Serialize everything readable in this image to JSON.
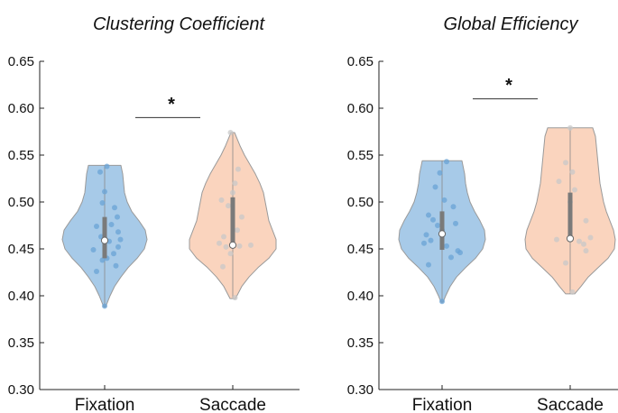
{
  "chart_data": [
    {
      "type": "violin",
      "title": "Clustering Coefficient",
      "categories": [
        "Fixation",
        "Saccade"
      ],
      "ylim": [
        0.3,
        0.65
      ],
      "yticks": [
        "0.30",
        "0.35",
        "0.40",
        "0.45",
        "0.50",
        "0.55",
        "0.60",
        "0.65"
      ],
      "significance": {
        "label": "*",
        "between": [
          "Fixation",
          "Saccade"
        ],
        "y": 0.59
      },
      "groups": [
        {
          "name": "Fixation",
          "color": "#8ab8e0",
          "dot_color": "#6aa3d6",
          "min": 0.388,
          "max": 0.539,
          "median": 0.459,
          "q1": 0.44,
          "q3": 0.484,
          "density": [
            [
              0.388,
              0.01
            ],
            [
              0.4,
              0.06
            ],
            [
              0.41,
              0.11
            ],
            [
              0.42,
              0.18
            ],
            [
              0.43,
              0.26
            ],
            [
              0.44,
              0.36
            ],
            [
              0.45,
              0.44
            ],
            [
              0.46,
              0.47
            ],
            [
              0.47,
              0.45
            ],
            [
              0.48,
              0.38
            ],
            [
              0.49,
              0.3
            ],
            [
              0.5,
              0.25
            ],
            [
              0.51,
              0.22
            ],
            [
              0.52,
              0.21
            ],
            [
              0.53,
              0.2
            ],
            [
              0.539,
              0.18
            ]
          ],
          "points": [
            [
              -0.1,
              0.532
            ],
            [
              0.05,
              0.538
            ],
            [
              0.0,
              0.511
            ],
            [
              -0.05,
              0.499
            ],
            [
              0.22,
              0.494
            ],
            [
              0.28,
              0.484
            ],
            [
              -0.18,
              0.474
            ],
            [
              0.15,
              0.476
            ],
            [
              0.3,
              0.468
            ],
            [
              -0.08,
              0.463
            ],
            [
              0.1,
              0.458
            ],
            [
              0.35,
              0.46
            ],
            [
              -0.25,
              0.449
            ],
            [
              0.3,
              0.452
            ],
            [
              0.2,
              0.445
            ],
            [
              0.05,
              0.44
            ],
            [
              -0.05,
              0.438
            ],
            [
              0.25,
              0.432
            ],
            [
              -0.18,
              0.426
            ],
            [
              0.0,
              0.389
            ]
          ]
        },
        {
          "name": "Saccade",
          "color": "#f8c5a8",
          "dot_color": "#c8c8c8",
          "min": 0.397,
          "max": 0.574,
          "median": 0.454,
          "q1": 0.452,
          "q3": 0.505,
          "density": [
            [
              0.397,
              0.03
            ],
            [
              0.41,
              0.1
            ],
            [
              0.42,
              0.18
            ],
            [
              0.43,
              0.28
            ],
            [
              0.44,
              0.4
            ],
            [
              0.45,
              0.48
            ],
            [
              0.46,
              0.48
            ],
            [
              0.47,
              0.44
            ],
            [
              0.48,
              0.4
            ],
            [
              0.49,
              0.38
            ],
            [
              0.5,
              0.36
            ],
            [
              0.51,
              0.34
            ],
            [
              0.52,
              0.3
            ],
            [
              0.53,
              0.25
            ],
            [
              0.54,
              0.19
            ],
            [
              0.55,
              0.13
            ],
            [
              0.56,
              0.08
            ],
            [
              0.574,
              0.02
            ]
          ],
          "points": [
            [
              -0.05,
              0.574
            ],
            [
              0.12,
              0.535
            ],
            [
              0.05,
              0.52
            ],
            [
              0.0,
              0.51
            ],
            [
              -0.25,
              0.502
            ],
            [
              -0.1,
              0.496
            ],
            [
              0.2,
              0.484
            ],
            [
              -0.2,
              0.463
            ],
            [
              0.1,
              0.47
            ],
            [
              -0.3,
              0.456
            ],
            [
              -0.15,
              0.452
            ],
            [
              0.15,
              0.453
            ],
            [
              0.4,
              0.454
            ],
            [
              -0.05,
              0.445
            ],
            [
              -0.22,
              0.431
            ],
            [
              0.05,
              0.398
            ]
          ]
        }
      ]
    },
    {
      "type": "violin",
      "title": "Global Efficiency",
      "categories": [
        "Fixation",
        "Saccade"
      ],
      "ylim": [
        0.3,
        0.65
      ],
      "yticks": [
        "0.30",
        "0.35",
        "0.40",
        "0.45",
        "0.50",
        "0.55",
        "0.60",
        "0.65"
      ],
      "significance": {
        "label": "*",
        "between": [
          "Fixation",
          "Saccade"
        ],
        "y": 0.61
      },
      "groups": [
        {
          "name": "Fixation",
          "color": "#8ab8e0",
          "dot_color": "#6aa3d6",
          "min": 0.393,
          "max": 0.544,
          "median": 0.466,
          "q1": 0.449,
          "q3": 0.49,
          "density": [
            [
              0.393,
              0.01
            ],
            [
              0.4,
              0.04
            ],
            [
              0.41,
              0.09
            ],
            [
              0.42,
              0.16
            ],
            [
              0.43,
              0.26
            ],
            [
              0.44,
              0.37
            ],
            [
              0.45,
              0.45
            ],
            [
              0.46,
              0.48
            ],
            [
              0.47,
              0.47
            ],
            [
              0.48,
              0.42
            ],
            [
              0.49,
              0.36
            ],
            [
              0.5,
              0.31
            ],
            [
              0.51,
              0.28
            ],
            [
              0.52,
              0.26
            ],
            [
              0.53,
              0.25
            ],
            [
              0.544,
              0.22
            ]
          ],
          "points": [
            [
              0.1,
              0.543
            ],
            [
              -0.05,
              0.531
            ],
            [
              -0.15,
              0.516
            ],
            [
              0.05,
              0.502
            ],
            [
              0.25,
              0.495
            ],
            [
              -0.3,
              0.486
            ],
            [
              -0.2,
              0.481
            ],
            [
              0.3,
              0.477
            ],
            [
              -0.1,
              0.475
            ],
            [
              0.0,
              0.47
            ],
            [
              -0.35,
              0.465
            ],
            [
              -0.25,
              0.459
            ],
            [
              -0.4,
              0.456
            ],
            [
              0.1,
              0.453
            ],
            [
              0.35,
              0.448
            ],
            [
              0.4,
              0.446
            ],
            [
              0.2,
              0.441
            ],
            [
              -0.3,
              0.433
            ],
            [
              0.0,
              0.394
            ]
          ]
        },
        {
          "name": "Saccade",
          "color": "#f8c5a8",
          "dot_color": "#c8c8c8",
          "min": 0.402,
          "max": 0.579,
          "median": 0.461,
          "q1": 0.46,
          "q3": 0.51,
          "density": [
            [
              0.402,
              0.05
            ],
            [
              0.41,
              0.12
            ],
            [
              0.42,
              0.2
            ],
            [
              0.43,
              0.31
            ],
            [
              0.44,
              0.42
            ],
            [
              0.45,
              0.49
            ],
            [
              0.46,
              0.5
            ],
            [
              0.47,
              0.48
            ],
            [
              0.48,
              0.44
            ],
            [
              0.49,
              0.4
            ],
            [
              0.5,
              0.37
            ],
            [
              0.51,
              0.35
            ],
            [
              0.52,
              0.33
            ],
            [
              0.53,
              0.32
            ],
            [
              0.54,
              0.31
            ],
            [
              0.55,
              0.3
            ],
            [
              0.56,
              0.29
            ],
            [
              0.57,
              0.28
            ],
            [
              0.579,
              0.25
            ]
          ],
          "points": [
            [
              0.0,
              0.579
            ],
            [
              -0.1,
              0.542
            ],
            [
              0.05,
              0.532
            ],
            [
              -0.25,
              0.522
            ],
            [
              0.1,
              0.513
            ],
            [
              0.0,
              0.5
            ],
            [
              0.35,
              0.48
            ],
            [
              0.0,
              0.462
            ],
            [
              -0.3,
              0.46
            ],
            [
              0.2,
              0.458
            ],
            [
              0.45,
              0.462
            ],
            [
              0.3,
              0.455
            ],
            [
              0.35,
              0.448
            ],
            [
              -0.1,
              0.435
            ],
            [
              0.05,
              0.404
            ]
          ]
        }
      ]
    }
  ]
}
